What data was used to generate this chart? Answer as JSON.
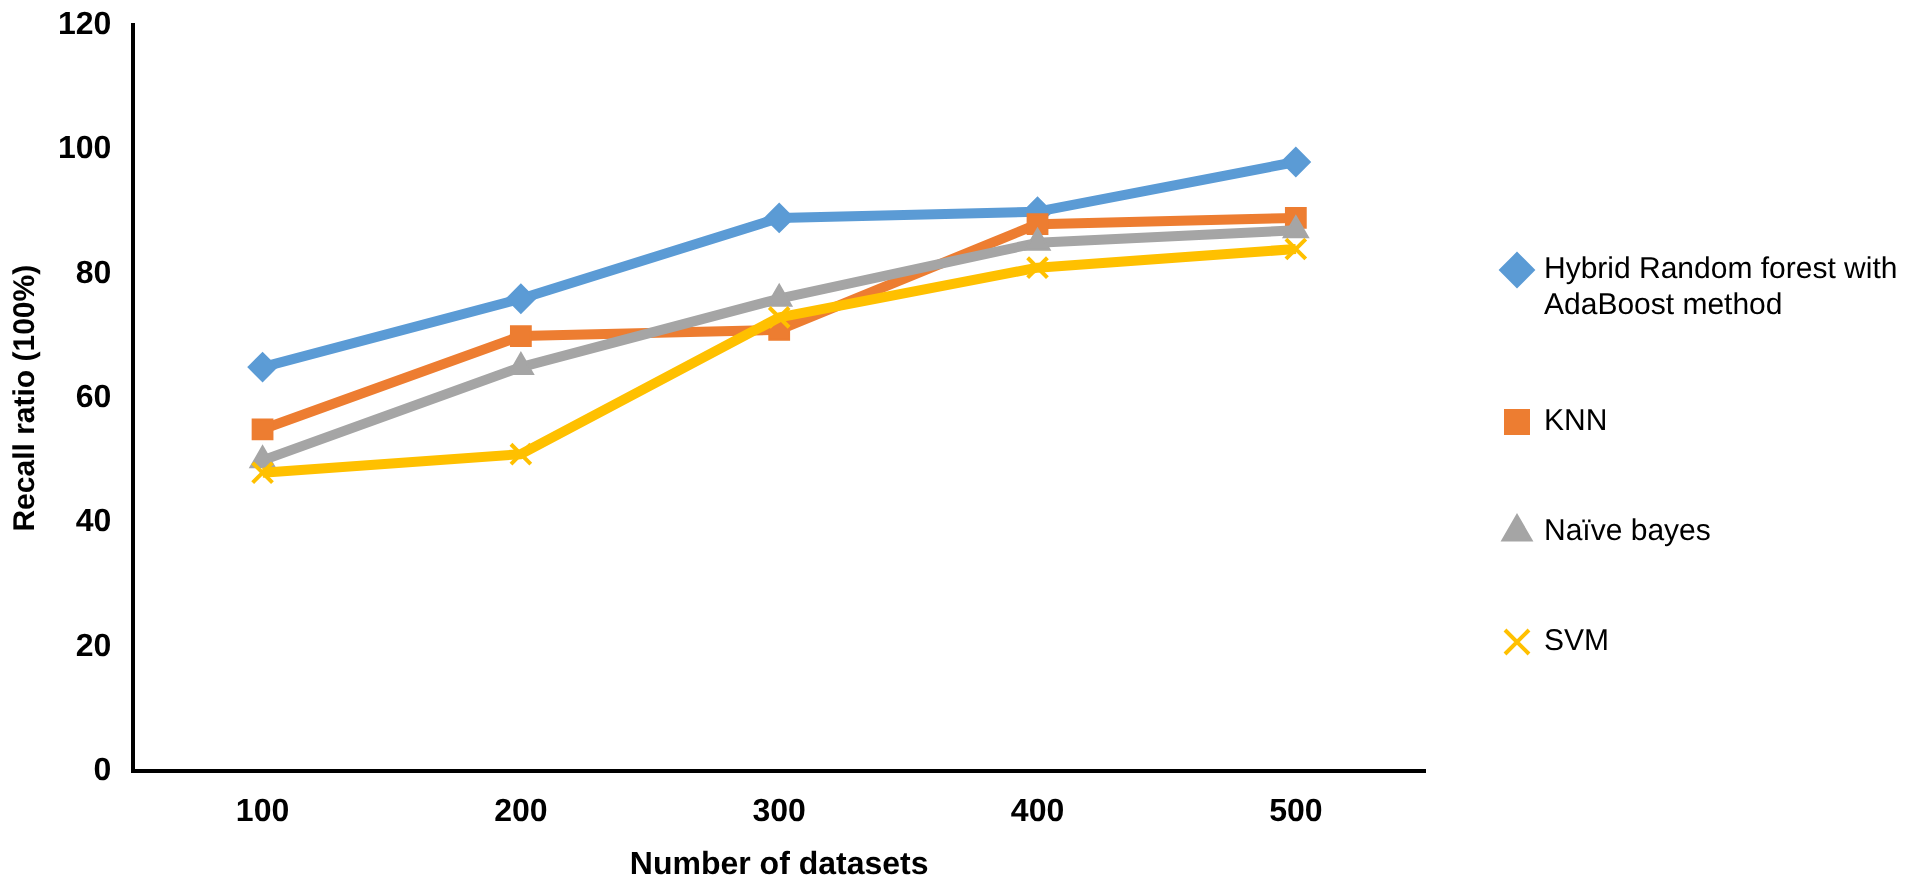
{
  "chart_data": {
    "type": "line",
    "xlabel": "Number of datasets",
    "ylabel": "Recall ratio (100%)",
    "categories": [
      "100",
      "200",
      "300",
      "400",
      "500"
    ],
    "ylim": [
      0,
      120
    ],
    "yticks": [
      0,
      20,
      40,
      60,
      80,
      100,
      120
    ],
    "grid": false,
    "legend": "right",
    "series": [
      {
        "name": "Hybrid Random forest with AdaBoost method",
        "color": "#5b9bd5",
        "marker": "diamond",
        "values": [
          65,
          76,
          89,
          90,
          98
        ]
      },
      {
        "name": "KNN",
        "color": "#ed7d31",
        "marker": "square",
        "values": [
          55,
          70,
          71,
          88,
          89
        ]
      },
      {
        "name": "Naïve bayes",
        "color": "#a5a5a5",
        "marker": "triangle",
        "values": [
          50,
          65,
          76,
          85,
          87
        ]
      },
      {
        "name": "SVM",
        "color": "#ffc000",
        "marker": "cross",
        "values": [
          48,
          51,
          73,
          81,
          84
        ]
      }
    ]
  }
}
